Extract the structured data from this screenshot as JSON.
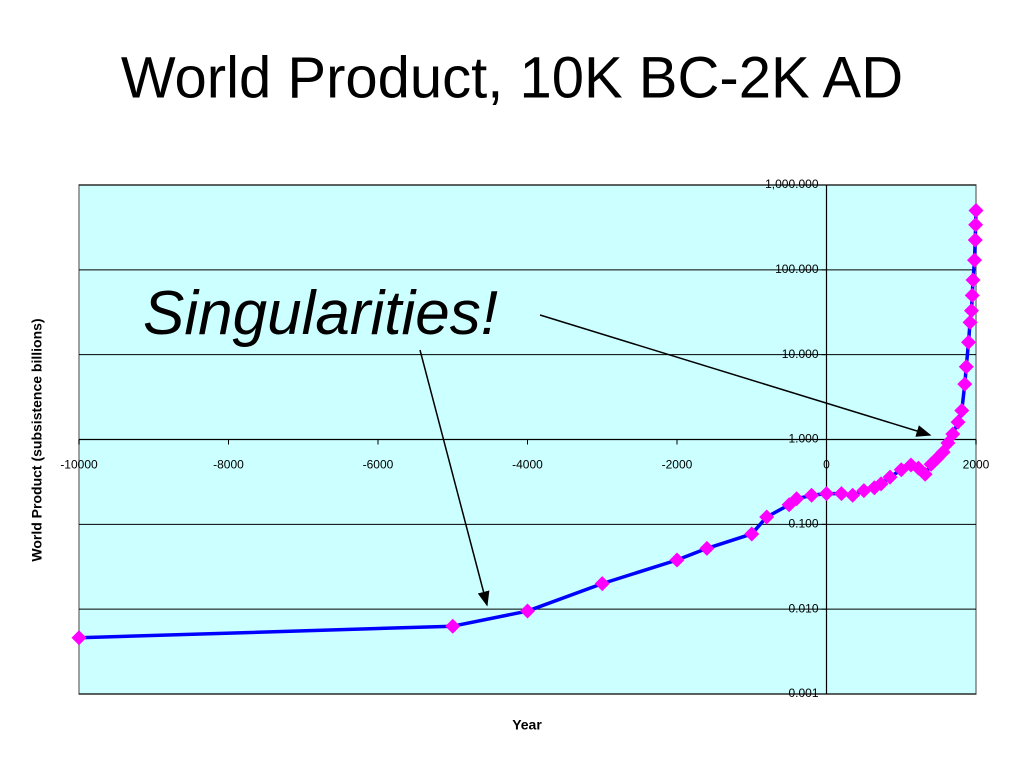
{
  "chart_data": {
    "type": "line",
    "title": "World Product, 10K BC-2K AD",
    "x_label": "Year",
    "y_label": "World Product (subsistence billions)",
    "annotation": "Singularities!",
    "yscale": "log",
    "grid": true,
    "background": "#ccffff",
    "xlim": [
      -10000,
      2000
    ],
    "xticks": [
      -10000,
      -8000,
      -6000,
      -4000,
      -2000,
      0,
      2000
    ],
    "ylim": [
      0.001,
      1000
    ],
    "yticks": [
      {
        "value": 0.001,
        "label": "0.001"
      },
      {
        "value": 0.01,
        "label": "0.010"
      },
      {
        "value": 0.1,
        "label": "0.100"
      },
      {
        "value": 1,
        "label": "1.000"
      },
      {
        "value": 10,
        "label": "10.000"
      },
      {
        "value": 100,
        "label": "100.000"
      },
      {
        "value": 1000,
        "label": "1,000.000"
      }
    ],
    "series": [
      {
        "name": "World Product",
        "color": "#0000ff",
        "marker_color": "#ff00ff",
        "x": [
          -10000,
          -5000,
          -4000,
          -3000,
          -2000,
          -1600,
          -1000,
          -800,
          -500,
          -400,
          -200,
          0,
          200,
          350,
          500,
          640,
          730,
          850,
          1000,
          1130,
          1230,
          1320,
          1400,
          1480,
          1560,
          1625,
          1690,
          1760,
          1810,
          1850,
          1870,
          1900,
          1920,
          1940,
          1950,
          1960,
          1980,
          1990,
          1995,
          2000
        ],
        "values": [
          0.0046,
          0.0063,
          0.0095,
          0.02,
          0.038,
          0.052,
          0.077,
          0.122,
          0.17,
          0.2,
          0.22,
          0.23,
          0.23,
          0.22,
          0.25,
          0.27,
          0.3,
          0.36,
          0.44,
          0.5,
          0.46,
          0.39,
          0.51,
          0.6,
          0.71,
          0.91,
          1.16,
          1.6,
          2.2,
          4.5,
          7.2,
          14,
          24,
          33,
          50,
          76,
          130,
          225,
          340,
          500
        ]
      }
    ]
  }
}
